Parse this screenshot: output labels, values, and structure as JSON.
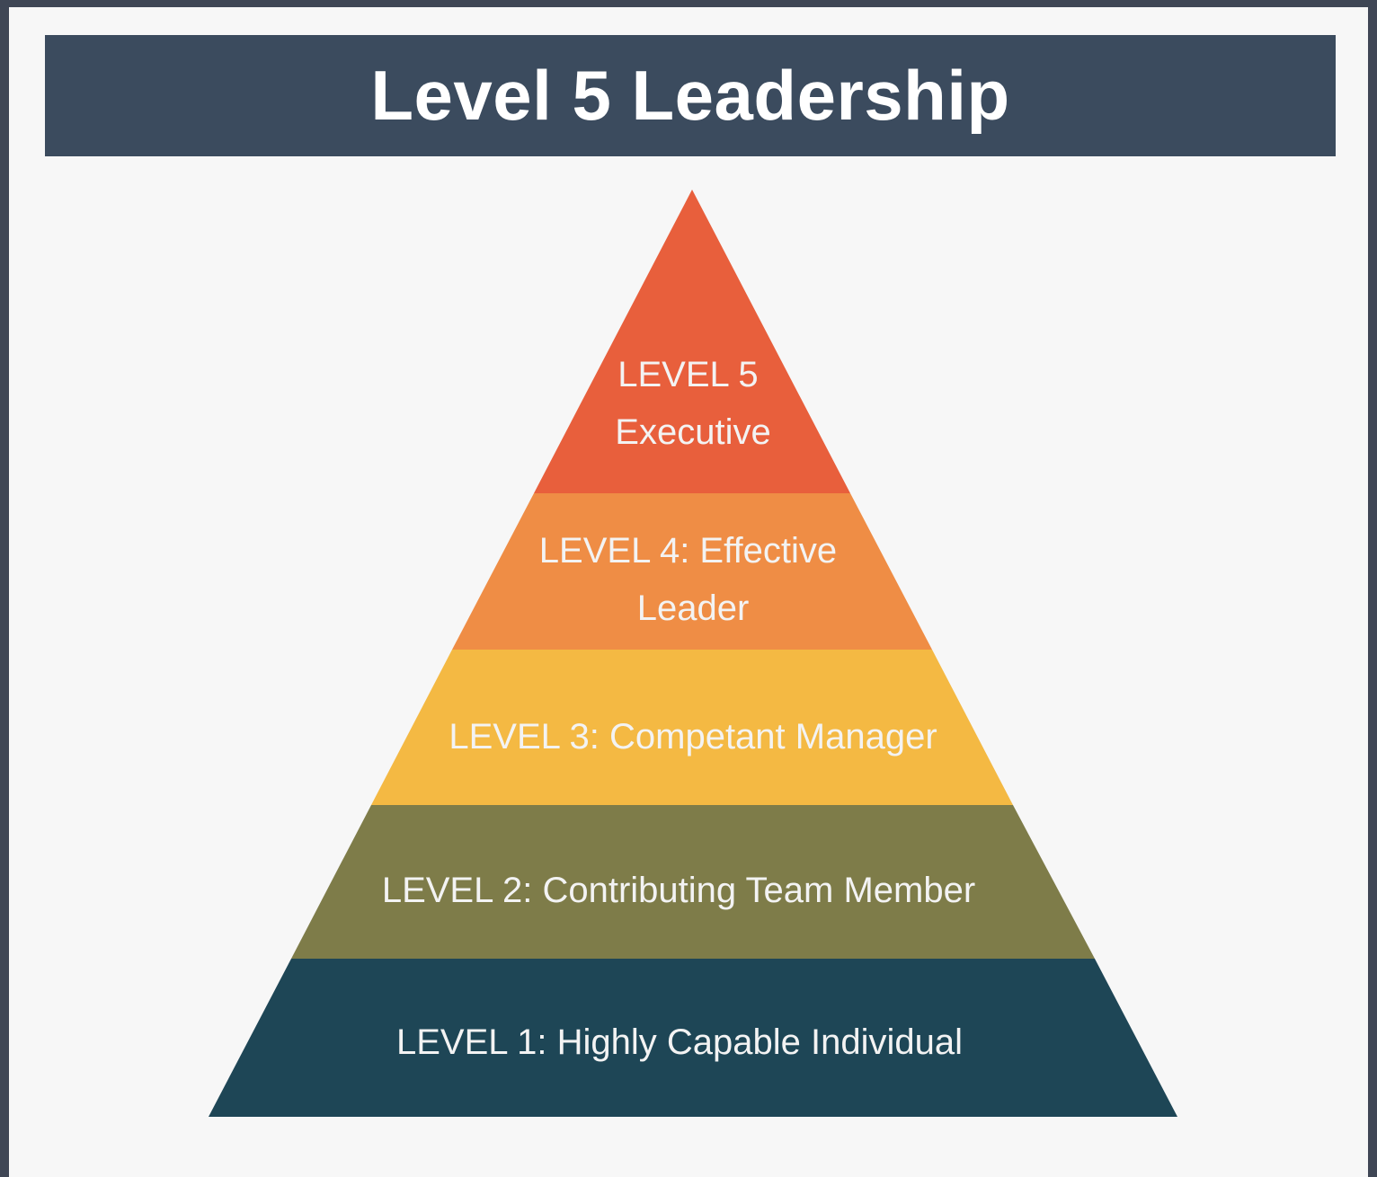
{
  "header": {
    "title": "Level 5 Leadership"
  },
  "pyramid": {
    "levels": [
      {
        "lines": [
          "LEVEL 5",
          "Executive"
        ],
        "color": "#e85f3c"
      },
      {
        "lines": [
          "LEVEL 4: Effective",
          "Leader"
        ],
        "color": "#ef8d45"
      },
      {
        "lines": [
          "LEVEL 3: Competant Manager"
        ],
        "color": "#f4b943"
      },
      {
        "lines": [
          "LEVEL 2: Contributing Team Member"
        ],
        "color": "#7e7c49"
      },
      {
        "lines": [
          "LEVEL 1: Highly Capable Individual"
        ],
        "color": "#1e4656"
      }
    ]
  }
}
